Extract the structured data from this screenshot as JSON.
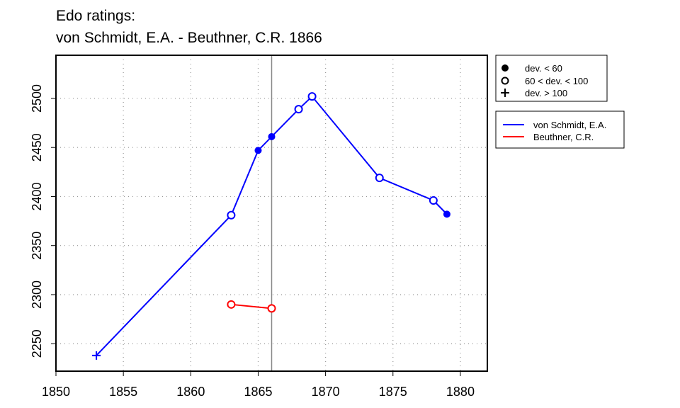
{
  "chart_data": {
    "type": "line",
    "title_lines": [
      "Edo ratings:",
      "von Schmidt, E.A. - Beuthner, C.R. 1866"
    ],
    "xlabel": "",
    "ylabel": "",
    "xlim": [
      1850,
      1882
    ],
    "ylim": [
      2222,
      2544
    ],
    "x_ticks": [
      1850,
      1855,
      1860,
      1865,
      1870,
      1875,
      1880
    ],
    "y_ticks": [
      2250,
      2300,
      2350,
      2400,
      2450,
      2500
    ],
    "grid": "dotted",
    "reference_line_x": 1866,
    "marker_legend": [
      {
        "symbol": "filled-circle",
        "label": "dev. < 60"
      },
      {
        "symbol": "open-circle",
        "label": "60 < dev. < 100"
      },
      {
        "symbol": "plus",
        "label": "dev. > 100"
      }
    ],
    "series": [
      {
        "name": "von Schmidt, E.A.",
        "color": "#0000ff",
        "points": [
          {
            "x": 1853,
            "y": 2238,
            "marker": "plus"
          },
          {
            "x": 1863,
            "y": 2381,
            "marker": "open-circle"
          },
          {
            "x": 1865,
            "y": 2447,
            "marker": "filled-circle"
          },
          {
            "x": 1866,
            "y": 2461,
            "marker": "filled-circle"
          },
          {
            "x": 1868,
            "y": 2489,
            "marker": "open-circle"
          },
          {
            "x": 1869,
            "y": 2502,
            "marker": "open-circle"
          },
          {
            "x": 1874,
            "y": 2419,
            "marker": "open-circle"
          },
          {
            "x": 1878,
            "y": 2396,
            "marker": "open-circle"
          },
          {
            "x": 1879,
            "y": 2382,
            "marker": "filled-circle"
          }
        ]
      },
      {
        "name": "Beuthner, C.R.",
        "color": "#ff0000",
        "points": [
          {
            "x": 1863,
            "y": 2290,
            "marker": "open-circle"
          },
          {
            "x": 1866,
            "y": 2286,
            "marker": "open-circle"
          }
        ]
      }
    ]
  }
}
